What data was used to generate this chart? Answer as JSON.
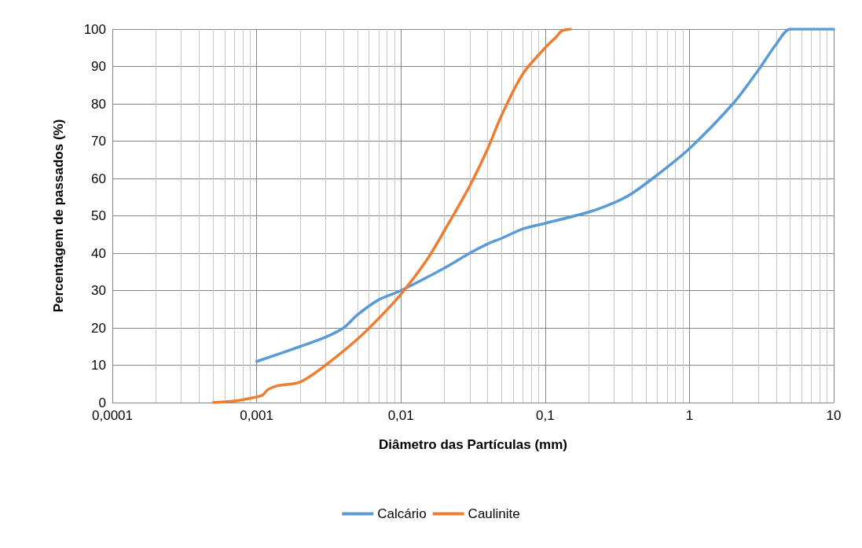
{
  "chart_data": {
    "type": "line",
    "xlabel": "Diâmetro das Partículas (mm)",
    "ylabel": "Percentagem de passados (%)",
    "log": "x",
    "grid": true,
    "legend": "bottom",
    "marker": "none",
    "line_style": "solid",
    "xlim": [
      0.0001,
      10
    ],
    "xticks": [
      {
        "value": 0.0001,
        "label": "0,0001"
      },
      {
        "value": 0.001,
        "label": "0,001"
      },
      {
        "value": 0.01,
        "label": "0,01"
      },
      {
        "value": 0.1,
        "label": "0,1"
      },
      1,
      10
    ],
    "ylim": [
      0,
      100
    ],
    "yticks": [
      0,
      10,
      20,
      30,
      40,
      50,
      60,
      70,
      80,
      90,
      100
    ],
    "series": [
      {
        "name": "Calcário",
        "color": "#5b9bd5",
        "x": [
          0.001,
          0.002,
          0.003,
          0.004,
          0.005,
          0.007,
          0.01,
          0.02,
          0.03,
          0.04,
          0.05,
          0.07,
          0.1,
          0.2,
          0.3,
          0.4,
          0.6,
          1,
          2,
          3,
          4,
          5,
          7,
          10
        ],
        "values": [
          11,
          15,
          17.5,
          20,
          23.5,
          27.5,
          30,
          36,
          40,
          42.5,
          44,
          46.5,
          48,
          51,
          53.5,
          56,
          61,
          68,
          80,
          89,
          96,
          100,
          100,
          100
        ]
      },
      {
        "name": "Caulinite",
        "color": "#ed7d31",
        "x": [
          0.0005,
          0.0007,
          0.001,
          0.0011,
          0.0012,
          0.0014,
          0.002,
          0.003,
          0.005,
          0.007,
          0.01,
          0.015,
          0.02,
          0.03,
          0.04,
          0.05,
          0.07,
          0.1,
          0.12,
          0.13,
          0.15
        ],
        "values": [
          0,
          0.4,
          1.5,
          2,
          3.5,
          4.5,
          5.5,
          10,
          17,
          22.5,
          29,
          38,
          46,
          58,
          68,
          77,
          88,
          95,
          98,
          99.5,
          100
        ]
      }
    ]
  }
}
